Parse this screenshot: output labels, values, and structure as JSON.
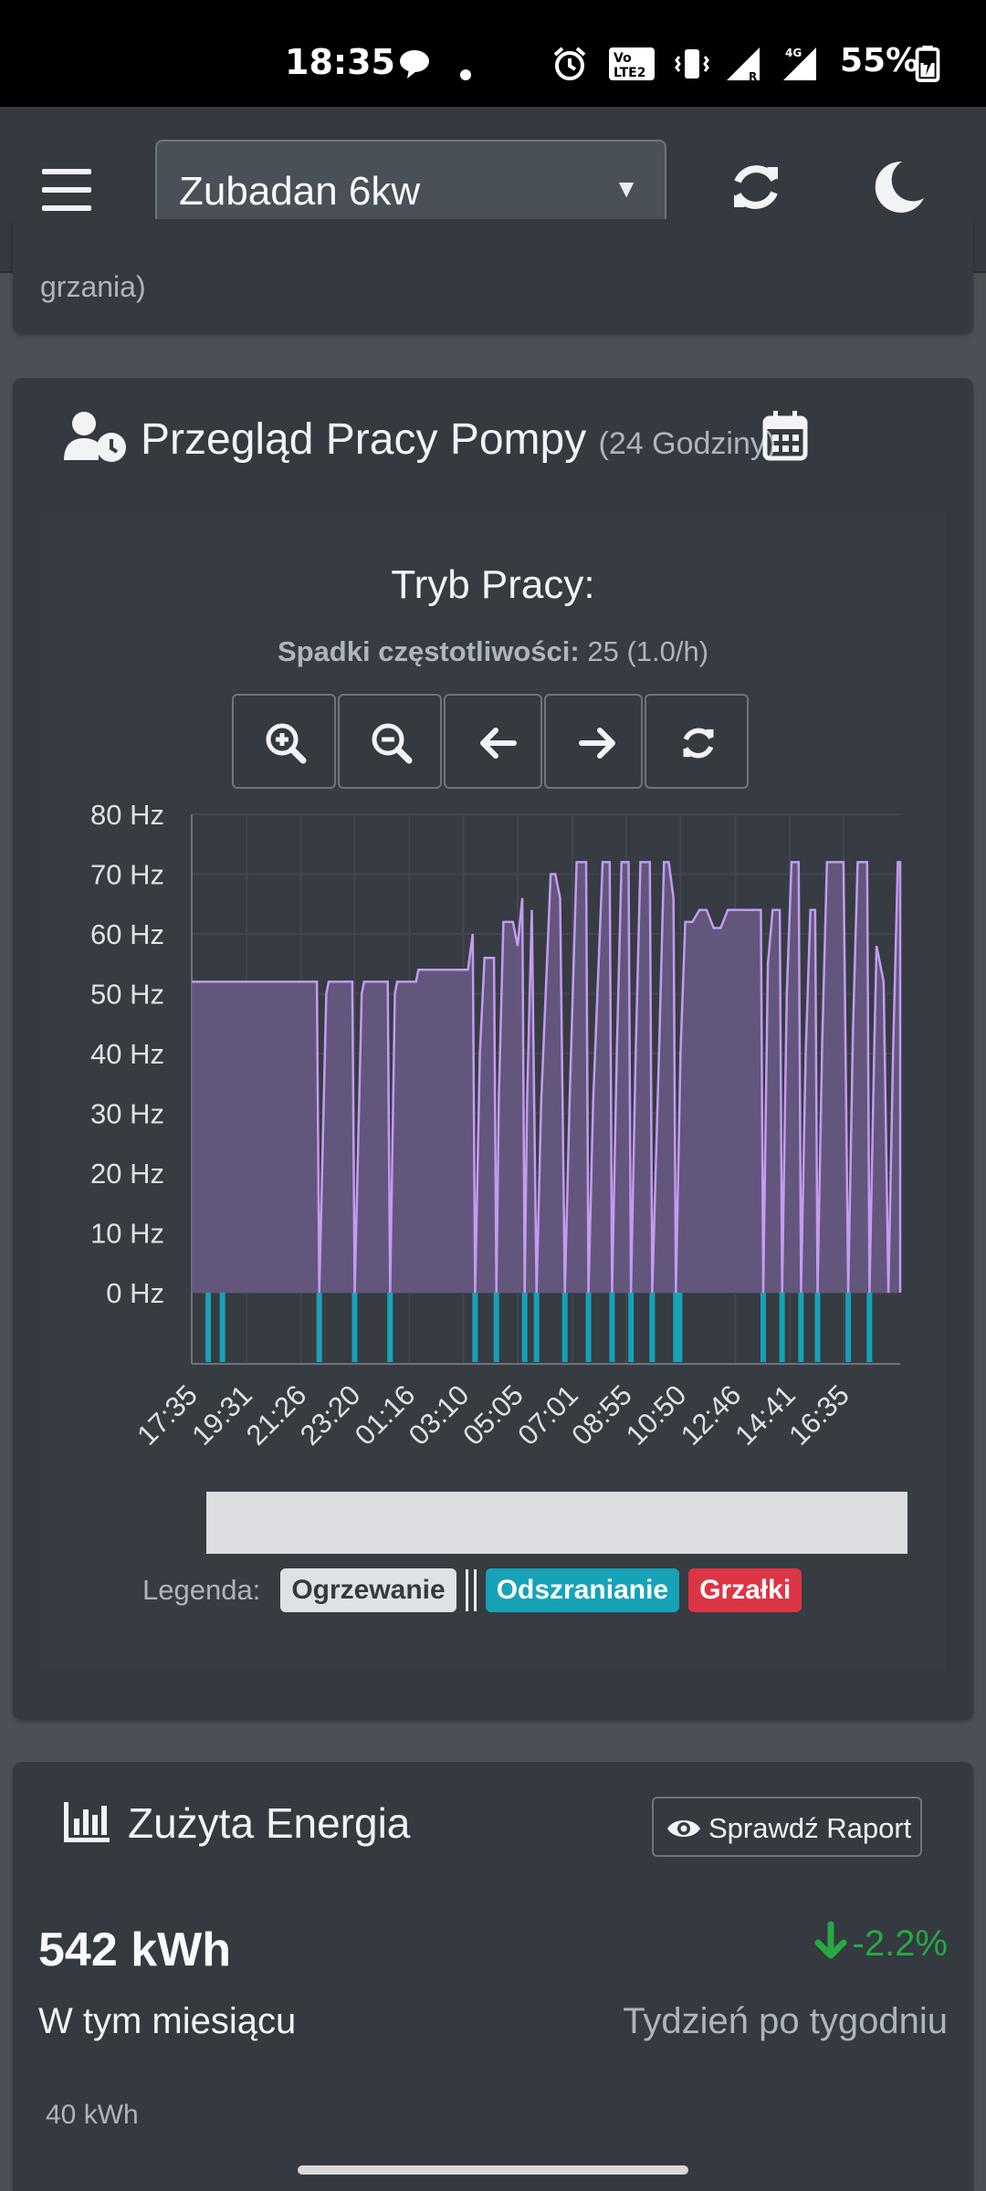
{
  "status_bar": {
    "time": "18:35",
    "battery": "55%",
    "network": "4G",
    "icons": [
      "chat-bubble-icon",
      "dot-icon",
      "alarm-icon",
      "volte-icon",
      "vibrate-icon",
      "signal-r-icon",
      "signal-4g-icon",
      "battery-charging-icon"
    ]
  },
  "app_bar": {
    "device": "Zubadan 6kw",
    "icons": [
      "hamburger-menu-icon",
      "refresh-icon",
      "moon-icon"
    ]
  },
  "prev_card": {
    "cut_text": "grzania)"
  },
  "pump_card": {
    "title": "Przegląd Pracy Pompy",
    "subtitle": "(24 Godziny)",
    "mode_title": "Tryb Pracy:",
    "freq_drops_label": "Spadki częstotliwości:",
    "freq_drops_value": "25 (1.0/h)",
    "buttons": [
      "zoom-in-icon",
      "zoom-out-icon",
      "arrow-left-icon",
      "arrow-right-icon",
      "refresh-icon"
    ],
    "legend_label": "Legenda:",
    "legend_items": [
      "Ogrzewanie",
      "Odszranianie",
      "Grzałki"
    ]
  },
  "colors": {
    "heating_line": "#c39bf0",
    "heating_fill": "#6a5a86",
    "defrost": "#17a2b8",
    "heater": "#dc3545",
    "positive_change": "#28a745"
  },
  "chart_data": {
    "type": "area",
    "ylabel_ticks": [
      "80 Hz",
      "70 Hz",
      "60 Hz",
      "50 Hz",
      "40 Hz",
      "30 Hz",
      "20 Hz",
      "10 Hz",
      "0 Hz"
    ],
    "ylim": [
      0,
      80
    ],
    "x_ticks": [
      "17:35",
      "19:31",
      "21:26",
      "23:20",
      "01:16",
      "03:10",
      "05:05",
      "07:01",
      "08:55",
      "10:50",
      "12:46",
      "14:41",
      "16:35"
    ],
    "x_range": [
      "17:35",
      "18:35"
    ],
    "series": [
      {
        "name": "Ogrzewanie",
        "unit": "Hz",
        "points": [
          [
            "17:35",
            52
          ],
          [
            "22:00",
            52
          ],
          [
            "22:05",
            0
          ],
          [
            "22:20",
            50
          ],
          [
            "22:25",
            52
          ],
          [
            "23:15",
            52
          ],
          [
            "23:20",
            0
          ],
          [
            "23:35",
            50
          ],
          [
            "23:40",
            52
          ],
          [
            "00:30",
            52
          ],
          [
            "00:35",
            0
          ],
          [
            "00:45",
            50
          ],
          [
            "00:50",
            52
          ],
          [
            "01:30",
            52
          ],
          [
            "01:35",
            54
          ],
          [
            "03:20",
            54
          ],
          [
            "03:30",
            60
          ],
          [
            "03:35",
            0
          ],
          [
            "03:45",
            40
          ],
          [
            "03:55",
            56
          ],
          [
            "04:15",
            56
          ],
          [
            "04:20",
            0
          ],
          [
            "04:25",
            32
          ],
          [
            "04:35",
            62
          ],
          [
            "04:55",
            62
          ],
          [
            "05:05",
            58
          ],
          [
            "05:15",
            66
          ],
          [
            "05:20",
            0
          ],
          [
            "05:25",
            32
          ],
          [
            "05:35",
            64
          ],
          [
            "05:45",
            0
          ],
          [
            "05:55",
            32
          ],
          [
            "06:15",
            70
          ],
          [
            "06:25",
            70
          ],
          [
            "06:35",
            66
          ],
          [
            "06:45",
            0
          ],
          [
            "06:55",
            32
          ],
          [
            "07:10",
            72
          ],
          [
            "07:30",
            72
          ],
          [
            "07:35",
            0
          ],
          [
            "07:45",
            32
          ],
          [
            "08:05",
            72
          ],
          [
            "08:20",
            72
          ],
          [
            "08:25",
            0
          ],
          [
            "08:35",
            40
          ],
          [
            "08:45",
            72
          ],
          [
            "09:00",
            72
          ],
          [
            "09:05",
            0
          ],
          [
            "09:15",
            40
          ],
          [
            "09:25",
            72
          ],
          [
            "09:45",
            72
          ],
          [
            "09:50",
            0
          ],
          [
            "10:05",
            42
          ],
          [
            "10:15",
            72
          ],
          [
            "10:25",
            72
          ],
          [
            "10:35",
            66
          ],
          [
            "10:40",
            0
          ],
          [
            "10:50",
            40
          ],
          [
            "11:00",
            62
          ],
          [
            "11:15",
            62
          ],
          [
            "11:30",
            64
          ],
          [
            "11:45",
            64
          ],
          [
            "12:00",
            61
          ],
          [
            "12:15",
            61
          ],
          [
            "12:30",
            64
          ],
          [
            "13:40",
            64
          ],
          [
            "13:45",
            0
          ],
          [
            "13:55",
            55
          ],
          [
            "14:05",
            64
          ],
          [
            "14:20",
            64
          ],
          [
            "14:25",
            0
          ],
          [
            "14:35",
            50
          ],
          [
            "14:45",
            72
          ],
          [
            "15:00",
            72
          ],
          [
            "15:05",
            0
          ],
          [
            "15:15",
            40
          ],
          [
            "15:25",
            64
          ],
          [
            "15:35",
            64
          ],
          [
            "15:40",
            0
          ],
          [
            "15:50",
            42
          ],
          [
            "16:00",
            72
          ],
          [
            "16:35",
            72
          ],
          [
            "16:45",
            0
          ],
          [
            "16:55",
            44
          ],
          [
            "17:05",
            72
          ],
          [
            "17:25",
            72
          ],
          [
            "17:30",
            0
          ],
          [
            "17:40",
            40
          ],
          [
            "17:45",
            58
          ],
          [
            "18:00",
            52
          ],
          [
            "18:10",
            0
          ],
          [
            "18:20",
            40
          ],
          [
            "18:30",
            72
          ],
          [
            "18:35",
            72
          ],
          [
            "18:38",
            70
          ],
          [
            "18:40",
            0
          ],
          [
            "18:45",
            40
          ]
        ]
      }
    ],
    "defrost_events": [
      "22:05",
      "23:20",
      "00:35",
      "03:35",
      "04:20",
      "05:20",
      "05:45",
      "06:45",
      "07:35",
      "08:25",
      "09:05",
      "09:50",
      "10:40",
      "10:48",
      "13:45",
      "14:25",
      "15:05",
      "15:40",
      "16:45",
      "17:30",
      "18:10",
      "18:40"
    ]
  },
  "energy_card": {
    "title": "Zużyta Energia",
    "report_button": "Sprawdź Raport",
    "value": "542 kWh",
    "period": "W tym miesiącu",
    "change": "-2.2%",
    "compare": "Tydzień po tygodniu",
    "axis_top": "40 kWh"
  }
}
